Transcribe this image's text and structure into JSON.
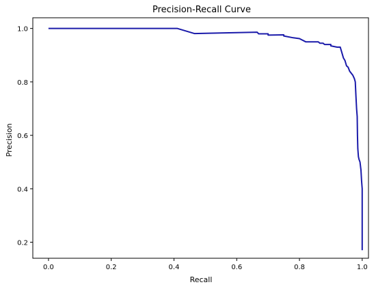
{
  "chart_data": {
    "type": "line",
    "title": "Precision-Recall Curve",
    "xlabel": "Recall",
    "ylabel": "Precision",
    "xlim": [
      -0.05,
      1.02
    ],
    "ylim": [
      0.14,
      1.04
    ],
    "xticks": [
      0.0,
      0.2,
      0.4,
      0.6,
      0.8,
      1.0
    ],
    "xtick_labels": [
      "0.0",
      "0.2",
      "0.4",
      "0.6",
      "0.8",
      "1.0"
    ],
    "yticks": [
      0.2,
      0.4,
      0.6,
      0.8,
      1.0
    ],
    "ytick_labels": [
      "0.2",
      "0.4",
      "0.6",
      "0.8",
      "1.0"
    ],
    "grid": false,
    "legend": "none",
    "line_color": "#1a1aaa",
    "series": [
      {
        "points": [
          [
            0.0,
            1.0
          ],
          [
            0.41,
            1.0
          ],
          [
            0.465,
            0.981
          ],
          [
            0.55,
            0.983
          ],
          [
            0.665,
            0.986
          ],
          [
            0.67,
            0.98
          ],
          [
            0.7,
            0.98
          ],
          [
            0.7,
            0.975
          ],
          [
            0.75,
            0.976
          ],
          [
            0.75,
            0.972
          ],
          [
            0.78,
            0.965
          ],
          [
            0.8,
            0.962
          ],
          [
            0.82,
            0.95
          ],
          [
            0.86,
            0.95
          ],
          [
            0.865,
            0.945
          ],
          [
            0.875,
            0.945
          ],
          [
            0.88,
            0.94
          ],
          [
            0.9,
            0.94
          ],
          [
            0.9,
            0.935
          ],
          [
            0.92,
            0.93
          ],
          [
            0.93,
            0.93
          ],
          [
            0.935,
            0.91
          ],
          [
            0.94,
            0.89
          ],
          [
            0.945,
            0.88
          ],
          [
            0.95,
            0.86
          ],
          [
            0.955,
            0.855
          ],
          [
            0.96,
            0.84
          ],
          [
            0.97,
            0.825
          ],
          [
            0.975,
            0.812
          ],
          [
            0.978,
            0.8
          ],
          [
            0.98,
            0.75
          ],
          [
            0.982,
            0.7
          ],
          [
            0.984,
            0.67
          ],
          [
            0.985,
            0.6
          ],
          [
            0.986,
            0.55
          ],
          [
            0.988,
            0.52
          ],
          [
            0.99,
            0.51
          ],
          [
            0.993,
            0.5
          ],
          [
            0.996,
            0.47
          ],
          [
            0.998,
            0.43
          ],
          [
            1.0,
            0.4
          ],
          [
            1.0,
            0.17
          ]
        ]
      }
    ]
  }
}
